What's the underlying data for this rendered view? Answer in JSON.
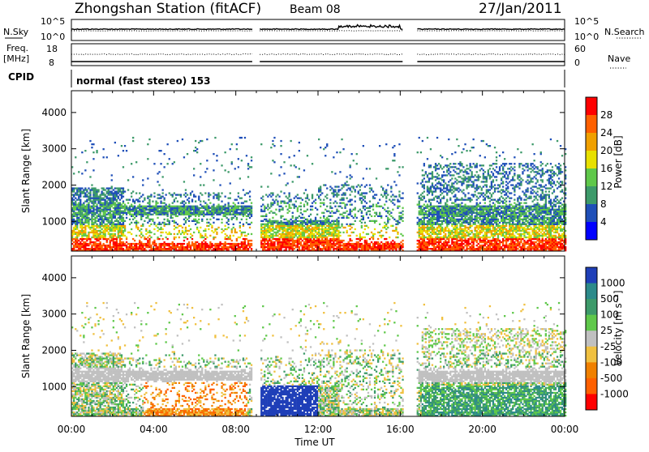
{
  "header": {
    "station": "Zhongshan Station (fitACF)",
    "beam": "Beam 08",
    "date": "27/Jan/2011"
  },
  "top_panels": {
    "nsky_label": "N.Sky",
    "nsky_ticks": [
      "10^5",
      "10^0"
    ],
    "nsearch_label": "N.Search",
    "nsearch_ticks": [
      "10^5",
      "10^0"
    ],
    "freq_label_1": "Freq.",
    "freq_label_2": "[MHz]",
    "freq_ticks": [
      "18",
      "8"
    ],
    "nave_label": "Nave",
    "nave_ticks": [
      "60",
      "0"
    ],
    "cpid_label": "CPID",
    "cpid_text": "normal (fast stereo) 153"
  },
  "colors": {
    "power": [
      "#0000ff",
      "#1f4fb8",
      "#3d9a6a",
      "#5fc84a",
      "#e8e000",
      "#f0a000",
      "#ff6000",
      "#ff0000"
    ],
    "velocity": [
      "#1f3fb8",
      "#2c8a8a",
      "#3d9a6a",
      "#5fc84a",
      "#c0c0c0",
      "#f0c040",
      "#f08000",
      "#ff6000",
      "#ff0000"
    ]
  },
  "chart_data": [
    {
      "type": "heatmap",
      "panel": "power",
      "ylabel": "Slant Range [km]",
      "x_tick_labels": [
        "00:00",
        "04:00",
        "08:00",
        "12:00",
        "16:00",
        "20:00",
        "00:00"
      ],
      "y_tick_labels": [
        "1000",
        "2000",
        "3000",
        "4000"
      ],
      "xlim_hours": [
        0,
        24
      ],
      "ylim_km": [
        180,
        4600
      ],
      "colorbar_label": "Power [dB]",
      "colorbar_ticks": [
        "4",
        "8",
        "12",
        "16",
        "20",
        "24",
        "28"
      ],
      "data_gaps_UT": [
        "08:50-09:10",
        "16:10-16:50"
      ]
    },
    {
      "type": "heatmap",
      "panel": "velocity",
      "xlabel": "Time UT",
      "ylabel": "Slant Range [km]",
      "x_tick_labels": [
        "00:00",
        "04:00",
        "08:00",
        "12:00",
        "16:00",
        "20:00",
        "00:00"
      ],
      "y_tick_labels": [
        "1000",
        "2000",
        "3000",
        "4000"
      ],
      "xlim_hours": [
        0,
        24
      ],
      "ylim_km": [
        180,
        4600
      ],
      "colorbar_label": "Velocity [m s⁻¹]",
      "colorbar_ticks": [
        "1000",
        "500",
        "100",
        "25",
        "-25",
        "-100",
        "-500",
        "-1000"
      ],
      "data_gaps_UT": [
        "08:50-09:10",
        "16:10-16:50"
      ]
    }
  ]
}
